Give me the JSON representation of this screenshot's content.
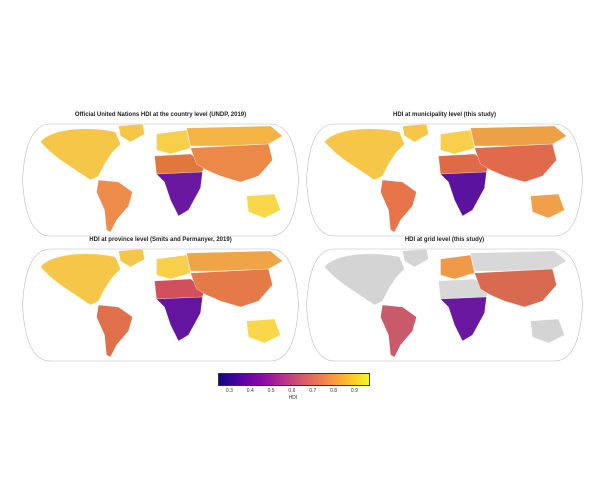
{
  "panels": [
    {
      "title": "Official United Nations HDI at the country level (UNDP, 2019)",
      "colors": {
        "na": "#f6c648",
        "greenland": "#f6c648",
        "sa": "#ee8c4c",
        "europe": "#f7cf4a",
        "africa": "#6a18a0",
        "n_africa": "#e0783e",
        "asia": "#ec8848",
        "russia": "#f3b445",
        "australia": "#f8d84a",
        "antarctic": "#ffffff"
      }
    },
    {
      "title": "HDI at municipality level (this study)",
      "colors": {
        "na": "#f6c648",
        "greenland": "#f6c648",
        "sa": "#e8744a",
        "europe": "#f7cf4a",
        "africa": "#5b129c",
        "n_africa": "#de6a48",
        "asia": "#e26a4c",
        "russia": "#eda046",
        "australia": "#f0a048",
        "antarctic": "#ffffff"
      }
    },
    {
      "title": "HDI at province level (Smits and Permanyer, 2019)",
      "colors": {
        "na": "#f6c648",
        "greenland": "#f6c648",
        "sa": "#e0704c",
        "europe": "#f7cf4a",
        "africa": "#6415a0",
        "n_africa": "#d0505c",
        "asia": "#e47a48",
        "russia": "#f0a445",
        "australia": "#f8d84a",
        "antarctic": "#ffffff"
      }
    },
    {
      "title": "HDI at grid level (this study)",
      "colors": {
        "na": "#d4d4d4",
        "greenland": "#d4d4d4",
        "sa": "#c85a6a",
        "europe": "#ef9a48",
        "africa": "#6a18a0",
        "n_africa": "#d8d8d8",
        "asia": "#d86a50",
        "russia": "#d8d8d8",
        "australia": "#d4d4d4",
        "antarctic": "#ffffff"
      }
    }
  ],
  "colorbar": {
    "ticks": [
      "0.3",
      "0.4",
      "0.5",
      "0.6",
      "0.7",
      "0.8",
      "0.9"
    ],
    "label": "HDI",
    "range": [
      0.25,
      0.97
    ],
    "colormap": "plasma"
  }
}
